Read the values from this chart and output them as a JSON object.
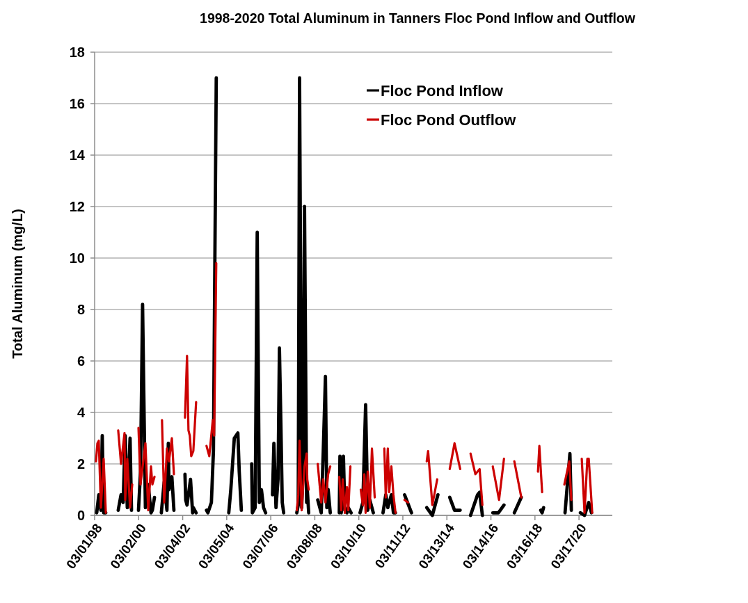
{
  "chart_data": {
    "type": "line",
    "title": "1998-2020 Total Aluminum in Tanners Floc Pond Inflow and Outflow",
    "ylabel": "Total Aluminum (mg/L)",
    "xlim": [
      "1998-03-01",
      "2021-09-22"
    ],
    "xticks": [
      {
        "value": "1998-03-01",
        "label": "03/01/98"
      },
      {
        "value": "2000-03-02",
        "label": "03/02/00"
      },
      {
        "value": "2002-03-04",
        "label": "03/04/02"
      },
      {
        "value": "2004-03-05",
        "label": "03/05/04"
      },
      {
        "value": "2006-03-07",
        "label": "03/07/06"
      },
      {
        "value": "2008-03-08",
        "label": "03/08/08"
      },
      {
        "value": "2010-03-10",
        "label": "03/10/10"
      },
      {
        "value": "2012-03-11",
        "label": "03/11/12"
      },
      {
        "value": "2014-03-13",
        "label": "03/13/14"
      },
      {
        "value": "2016-03-14",
        "label": "03/14/16"
      },
      {
        "value": "2018-03-16",
        "label": "03/16/18"
      },
      {
        "value": "2020-03-17",
        "label": "03/17/20"
      }
    ],
    "ylim": [
      0,
      18
    ],
    "yticks": [
      0,
      2,
      4,
      6,
      8,
      10,
      12,
      14,
      16,
      18
    ],
    "grid": "y",
    "legend": "top right",
    "line_style": "solid",
    "marker": "none",
    "series": [
      {
        "name": "Floc Pond Inflow",
        "color": "#000000",
        "x": [
          "1998-04-05",
          "1998-05-09",
          "1998-06-13",
          "1998-07-06",
          "1998-07-29",
          "1998-09-03",
          "1998-12-31",
          "1999-03-28",
          "1999-05-14",
          "1999-06-18",
          "1999-07-22",
          "1999-08-26",
          "1999-10-11",
          "1999-11-04",
          "1999-12-31",
          "2000-02-28",
          "2000-04-02",
          "2000-05-06",
          "2000-06-22",
          "2000-08-08",
          "2000-09-23",
          "2000-10-16",
          "2000-11-20",
          "2000-12-31",
          "2001-03-14",
          "2001-04-30",
          "2001-06-15",
          "2001-07-08",
          "2001-07-19",
          "2001-09-05",
          "2001-10-09",
          "2001-12-31",
          "2002-04-11",
          "2002-04-23",
          "2002-05-15",
          "2002-07-12",
          "2002-08-16",
          "2002-08-28",
          "2002-10-13",
          "2002-12-31",
          "2003-04-04",
          "2003-04-27",
          "2003-06-24",
          "2003-07-28",
          "2003-09-13",
          "2003-12-31",
          "2004-04-08",
          "2004-05-12",
          "2004-07-09",
          "2004-09-06",
          "2004-09-29",
          "2004-11-03",
          "2004-12-31",
          "2005-04-24",
          "2005-05-05",
          "2005-06-21",
          "2005-07-25",
          "2005-08-29",
          "2005-10-03",
          "2005-11-07",
          "2005-12-12",
          "2005-12-31",
          "2006-04-05",
          "2006-04-28",
          "2006-06-02",
          "2006-07-06",
          "2006-07-29",
          "2006-08-22",
          "2006-09-14",
          "2006-10-08",
          "2006-12-31",
          "2007-05-14",
          "2007-06-07",
          "2007-06-29",
          "2007-08-03",
          "2007-08-27",
          "2007-09-19",
          "2007-10-24",
          "2007-11-04",
          "2007-11-28",
          "2007-12-31",
          "2008-04-26",
          "2008-06-23",
          "2008-07-27",
          "2008-09-01",
          "2008-09-24",
          "2008-10-16",
          "2008-11-20",
          "2008-12-31",
          "2009-04-19",
          "2009-04-30",
          "2009-05-22",
          "2009-06-27",
          "2009-07-20",
          "2009-08-24",
          "2009-09-16",
          "2009-11-02",
          "2009-12-31",
          "2010-03-30",
          "2010-05-16",
          "2010-07-01",
          "2010-08-05",
          "2010-09-09",
          "2010-11-06",
          "2010-12-31",
          "2011-04-16",
          "2011-06-01",
          "2011-07-05",
          "2011-09-02",
          "2011-10-06",
          "2011-11-10",
          "2011-12-31",
          "2012-04-08",
          "2012-08-02",
          "2012-12-31",
          "2013-04-12",
          "2013-07-14",
          "2013-10-15",
          "2013-12-31",
          "2014-04-29",
          "2014-07-18",
          "2014-10-20",
          "2014-12-31",
          "2015-04-10",
          "2015-08-04",
          "2015-09-08",
          "2015-10-24",
          "2015-12-31",
          "2016-04-14",
          "2016-07-16",
          "2016-10-17",
          "2016-12-31",
          "2017-04-07",
          "2017-08-01",
          "2017-12-31",
          "2018-06-20",
          "2018-07-13",
          "2018-08-06",
          "2018-12-31",
          "2019-07-29",
          "2019-10-18",
          "2019-11-11",
          "2019-12-31",
          "2020-04-09",
          "2020-06-17",
          "2020-08-26",
          "2020-10-11"
        ],
        "values": [
          0.1,
          0.8,
          0.2,
          3.1,
          0.1,
          0.1,
          null,
          0.2,
          0.8,
          0.5,
          3.1,
          0.3,
          3.0,
          0.2,
          null,
          0.2,
          1.7,
          8.2,
          0.3,
          1.2,
          0.1,
          0.2,
          0.7,
          null,
          0.1,
          1.3,
          0.2,
          2.8,
          1.0,
          1.5,
          0.2,
          null,
          1.6,
          0.6,
          0.4,
          1.4,
          0.1,
          0.3,
          0.1,
          null,
          0.2,
          0.1,
          0.5,
          2.5,
          17,
          null,
          0.1,
          1.0,
          3.0,
          3.2,
          1.7,
          0.2,
          null,
          2.0,
          0.1,
          0.3,
          11,
          0.5,
          1.0,
          0.3,
          0.1,
          null,
          0.8,
          2.8,
          0.3,
          1.4,
          6.5,
          3.6,
          0.5,
          0.1,
          null,
          0.1,
          0.4,
          17,
          0.3,
          2.0,
          12,
          0.5,
          1.0,
          0.1,
          null,
          0.6,
          0.1,
          2.5,
          5.4,
          0.3,
          1.0,
          0.1,
          null,
          0.1,
          2.3,
          0.1,
          2.3,
          0.2,
          0.1,
          0.3,
          0.1,
          null,
          0.1,
          0.5,
          4.3,
          0.2,
          0.6,
          0.1,
          null,
          0.1,
          0.8,
          0.3,
          0.8,
          0.1,
          0.1,
          null,
          0.8,
          0.1,
          null,
          0.3,
          0.0,
          0.8,
          null,
          0.7,
          0.2,
          0.2,
          null,
          0.0,
          0.8,
          0.9,
          0.0,
          null,
          0.1,
          0.1,
          0.4,
          null,
          0.1,
          0.7,
          null,
          0.2,
          0.1,
          0.3,
          null,
          0.1,
          2.4,
          0.2,
          null,
          0.1,
          0.0,
          0.5,
          0.1
        ]
      },
      {
        "name": "Floc Pond Outflow",
        "color": "#cc0000",
        "x": [
          "1998-03-24",
          "1998-04-16",
          "1998-05-09",
          "1998-06-13",
          "1998-07-29",
          "1998-09-03",
          "1998-12-31",
          "1999-03-28",
          "1999-05-14",
          "1999-07-11",
          "1999-07-22",
          "1999-08-26",
          "1999-10-11",
          "1999-11-16",
          "1999-12-31",
          "2000-02-28",
          "2000-04-02",
          "2000-06-22",
          "2000-08-08",
          "2000-09-23",
          "2000-10-16",
          "2000-11-20",
          "2000-12-31",
          "2001-03-25",
          "2001-04-30",
          "2001-06-15",
          "2001-07-19",
          "2001-09-05",
          "2001-10-09",
          "2001-12-31",
          "2002-04-11",
          "2002-05-15",
          "2002-06-08",
          "2002-06-30",
          "2002-07-24",
          "2002-08-28",
          "2002-10-13",
          "2002-12-31",
          "2003-04-04",
          "2003-05-20",
          "2003-07-17",
          "2003-08-09",
          "2003-09-13",
          "2003-12-31",
          "2007-05-14",
          "2007-06-07",
          "2007-06-29",
          "2007-08-03",
          "2007-09-19",
          "2007-10-24",
          "2007-11-04",
          "2007-11-28",
          "2007-12-31",
          "2008-04-26",
          "2008-06-23",
          "2008-07-27",
          "2008-09-01",
          "2008-10-16",
          "2008-11-20",
          "2008-12-31",
          "2009-04-19",
          "2009-05-22",
          "2009-06-15",
          "2009-07-20",
          "2009-08-24",
          "2009-09-16",
          "2009-10-21",
          "2009-12-31",
          "2010-04-11",
          "2010-05-16",
          "2010-06-08",
          "2010-07-01",
          "2010-08-05",
          "2010-09-09",
          "2010-10-14",
          "2010-11-29",
          "2010-12-31",
          "2011-05-08",
          "2011-06-01",
          "2011-07-05",
          "2011-07-28",
          "2011-09-02",
          "2011-10-06",
          "2011-11-10",
          "2011-12-31",
          "2012-04-08",
          "2012-06-05",
          "2012-12-31",
          "2013-04-12",
          "2013-05-05",
          "2013-07-14",
          "2013-10-03",
          "2013-12-31",
          "2014-04-29",
          "2014-07-18",
          "2014-10-20",
          "2014-12-31",
          "2015-04-10",
          "2015-06-30",
          "2015-09-08",
          "2015-10-24",
          "2015-12-31",
          "2016-04-14",
          "2016-07-27",
          "2016-10-17",
          "2016-12-31",
          "2017-04-07",
          "2017-08-01",
          "2017-12-31",
          "2018-05-05",
          "2018-05-28",
          "2018-07-13",
          "2018-12-31",
          "2019-07-18",
          "2019-10-07",
          "2019-11-11",
          "2019-12-31",
          "2020-05-02",
          "2020-06-17",
          "2020-08-03",
          "2020-08-26",
          "2020-10-23"
        ],
        "values": [
          2.1,
          2.8,
          2.9,
          0.3,
          2.2,
          0.1,
          null,
          3.3,
          2.0,
          3.2,
          0.6,
          2.2,
          0.3,
          1.2,
          null,
          3.4,
          1.2,
          2.8,
          0.2,
          1.9,
          1.2,
          1.5,
          null,
          3.7,
          0.5,
          2.6,
          2.1,
          3.0,
          1.6,
          null,
          3.8,
          6.2,
          3.3,
          3.1,
          2.3,
          2.5,
          4.4,
          null,
          2.7,
          2.3,
          3.7,
          3.1,
          9.8,
          null,
          0.2,
          0.8,
          2.9,
          0.2,
          1.9,
          2.4,
          1.4,
          1.0,
          null,
          2.0,
          0.5,
          1.4,
          0.5,
          1.6,
          1.9,
          null,
          1.5,
          0.2,
          1.4,
          0.1,
          1.1,
          0.2,
          1.9,
          null,
          1.0,
          0.4,
          1.6,
          0.1,
          1.7,
          0.3,
          2.6,
          0.7,
          null,
          2.6,
          0.7,
          2.6,
          0.9,
          1.9,
          0.8,
          0.1,
          null,
          0.6,
          0.5,
          null,
          2.1,
          2.5,
          0.4,
          1.4,
          null,
          1.8,
          2.8,
          1.8,
          null,
          2.4,
          1.6,
          1.8,
          0.4,
          null,
          1.9,
          0.6,
          2.2,
          null,
          2.1,
          0.7,
          null,
          1.7,
          2.7,
          0.9,
          null,
          1.2,
          2.1,
          0.6,
          null,
          2.2,
          0.1,
          2.2,
          2.2,
          0.1
        ]
      }
    ]
  }
}
